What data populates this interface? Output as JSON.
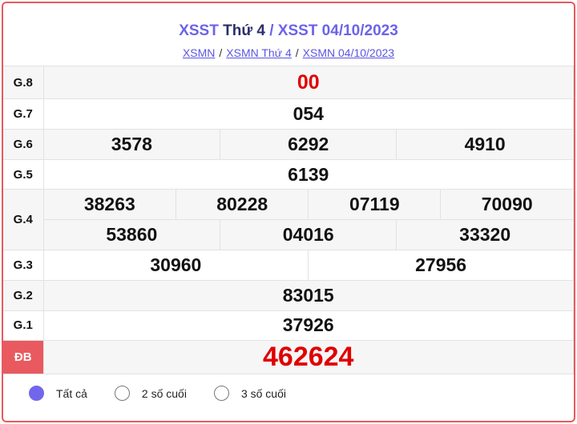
{
  "header": {
    "title_part1": "XSST",
    "title_part2": "Thứ 4",
    "title_sep": "/",
    "title_part3": "XSST 04/10/2023"
  },
  "breadcrumb": [
    "XSMN",
    "XSMN Thứ 4",
    "XSMN 04/10/2023"
  ],
  "breadcrumb_sep": "/",
  "prizes": {
    "g8": {
      "label": "G.8",
      "numbers": [
        "00"
      ]
    },
    "g7": {
      "label": "G.7",
      "numbers": [
        "054"
      ]
    },
    "g6": {
      "label": "G.6",
      "numbers": [
        "3578",
        "6292",
        "4910"
      ]
    },
    "g5": {
      "label": "G.5",
      "numbers": [
        "6139"
      ]
    },
    "g4": {
      "label": "G.4",
      "numbers": [
        "38263",
        "80228",
        "07119",
        "70090",
        "53860",
        "04016",
        "33320"
      ]
    },
    "g3": {
      "label": "G.3",
      "numbers": [
        "30960",
        "27956"
      ]
    },
    "g2": {
      "label": "G.2",
      "numbers": [
        "83015"
      ]
    },
    "g1": {
      "label": "G.1",
      "numbers": [
        "37926"
      ]
    },
    "db": {
      "label": "ĐB",
      "numbers": [
        "462624"
      ]
    }
  },
  "filter": {
    "options": [
      {
        "label": "Tất cả",
        "selected": true
      },
      {
        "label": "2 số cuối",
        "selected": false
      },
      {
        "label": "3 số cuối",
        "selected": false
      }
    ]
  },
  "colors": {
    "accent": "#6c63e8",
    "highlight": "#e00000",
    "special_label_bg": "#e85a5f",
    "border": "#e85a5f"
  }
}
